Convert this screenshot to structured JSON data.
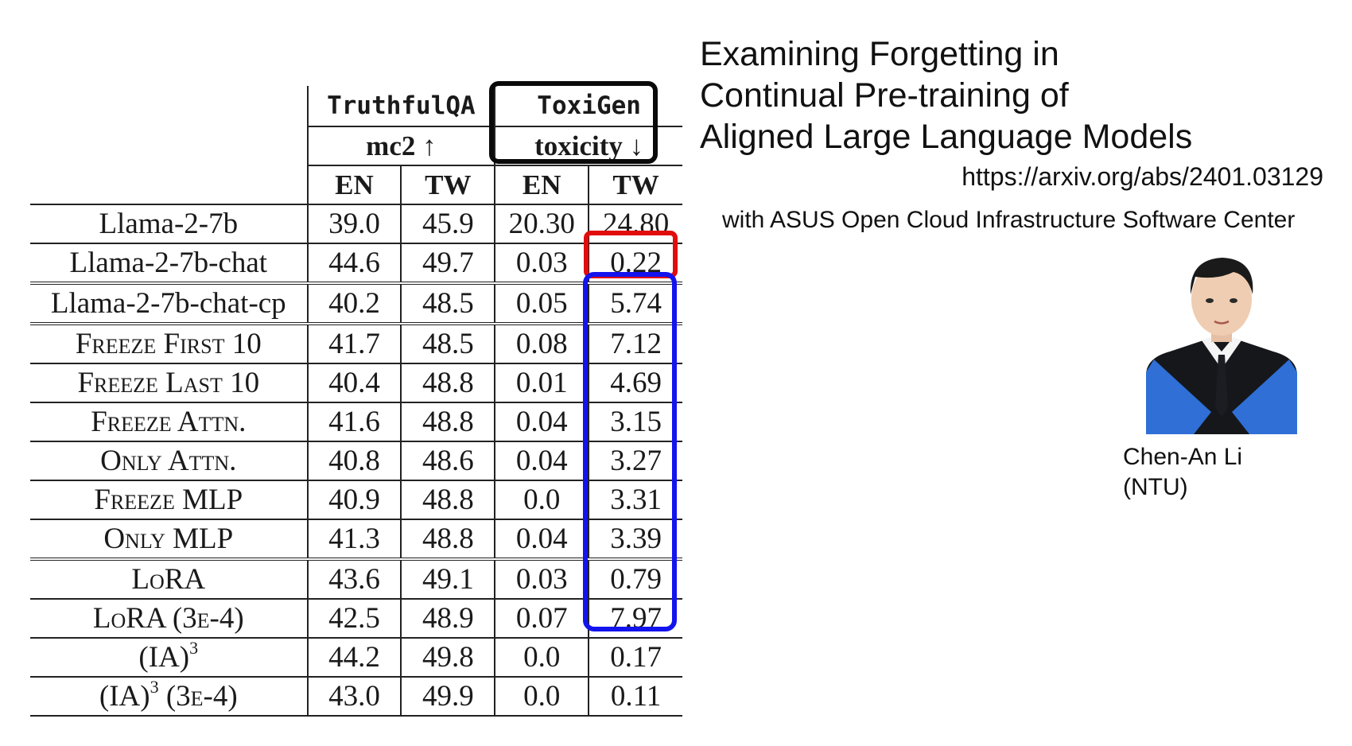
{
  "table": {
    "groups": {
      "truthful": "TruthfulQA",
      "toxigen": "ToxiGen"
    },
    "metrics": {
      "truthful": "mc2 ↑",
      "toxigen": "toxicity ↓"
    },
    "columns": [
      "EN",
      "TW",
      "EN",
      "TW"
    ],
    "rows": [
      {
        "name": "Llama-2-7b",
        "sc": false,
        "values": [
          "39.0",
          "45.9",
          "20.30",
          "24.80"
        ]
      },
      {
        "name": "Llama-2-7b-chat",
        "sc": false,
        "values": [
          "44.6",
          "49.7",
          "0.03",
          "0.22"
        ]
      },
      {
        "name": "Llama-2-7b-chat-cp",
        "sc": false,
        "values": [
          "40.2",
          "48.5",
          "0.05",
          "5.74"
        ]
      },
      {
        "name": "Freeze First 10",
        "sc": true,
        "values": [
          "41.7",
          "48.5",
          "0.08",
          "7.12"
        ]
      },
      {
        "name": "Freeze Last 10",
        "sc": true,
        "values": [
          "40.4",
          "48.8",
          "0.01",
          "4.69"
        ]
      },
      {
        "name": "Freeze Attn.",
        "sc": true,
        "values": [
          "41.6",
          "48.8",
          "0.04",
          "3.15"
        ]
      },
      {
        "name": "Only Attn.",
        "sc": true,
        "values": [
          "40.8",
          "48.6",
          "0.04",
          "3.27"
        ]
      },
      {
        "name": "Freeze MLP",
        "sc": true,
        "values": [
          "40.9",
          "48.8",
          "0.0",
          "3.31"
        ]
      },
      {
        "name": "Only MLP",
        "sc": true,
        "values": [
          "41.3",
          "48.8",
          "0.04",
          "3.39"
        ]
      },
      {
        "name": "LoRA",
        "sc": true,
        "values": [
          "43.6",
          "49.1",
          "0.03",
          "0.79"
        ]
      },
      {
        "name": "LoRA (3e-4)",
        "sc": true,
        "values": [
          "42.5",
          "48.9",
          "0.07",
          "7.97"
        ]
      },
      {
        "name": "(IA)",
        "sup": "3",
        "suffix": "",
        "sc": true,
        "values": [
          "44.2",
          "49.8",
          "0.0",
          "0.17"
        ]
      },
      {
        "name": "(IA)",
        "sup": "3",
        "suffix": " (3e-4)",
        "sc": true,
        "values": [
          "43.0",
          "49.9",
          "0.0",
          "0.11"
        ]
      }
    ],
    "group_starts": [
      2,
      3,
      9
    ],
    "highlight_colors": {
      "toxigen_header": "#0a0a0a",
      "chat_tw": "#e10d0d",
      "cp_variants_tw": "#1313ee"
    }
  },
  "paper": {
    "title_lines": [
      "Examining Forgetting in",
      "Continual Pre-training of",
      "Aligned Large Language Models"
    ],
    "url": "https://arxiv.org/abs/2401.03129",
    "affiliation": "with ASUS Open Cloud Infrastructure Software Center"
  },
  "author": {
    "name": "Chen-An Li",
    "org": "(NTU)"
  }
}
